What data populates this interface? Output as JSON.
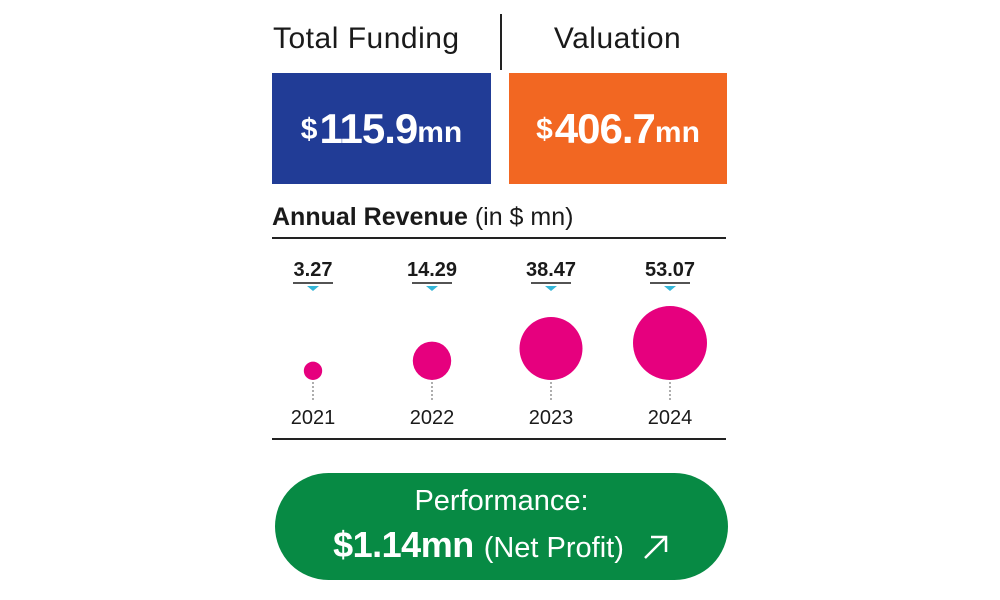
{
  "funding": {
    "label": "Total Funding",
    "currency": "$",
    "number": "115.9",
    "unit": "mn"
  },
  "valuation": {
    "label": "Valuation",
    "currency": "$",
    "number": "406.7",
    "unit": "mn"
  },
  "revenue_heading": {
    "bold": "Annual Revenue",
    "unit": "(in $ mn)"
  },
  "performance": {
    "title": "Performance:",
    "value": "$1.14mn",
    "note": "(Net Profit)",
    "icon": "arrow-up-right-icon"
  },
  "colors": {
    "funding": "#213c96",
    "valuation": "#f26722",
    "bubble": "#e6007e",
    "pointer": "#35b6d8",
    "performance": "#078a44"
  },
  "chart_data": {
    "type": "bubble",
    "title": "Annual Revenue",
    "unit": "(in $ mn)",
    "categories": [
      "2021",
      "2022",
      "2023",
      "2024"
    ],
    "labels": [
      "3.27",
      "14.29",
      "38.47",
      "53.07"
    ],
    "values": [
      3.27,
      14.29,
      38.47,
      53.07
    ]
  }
}
